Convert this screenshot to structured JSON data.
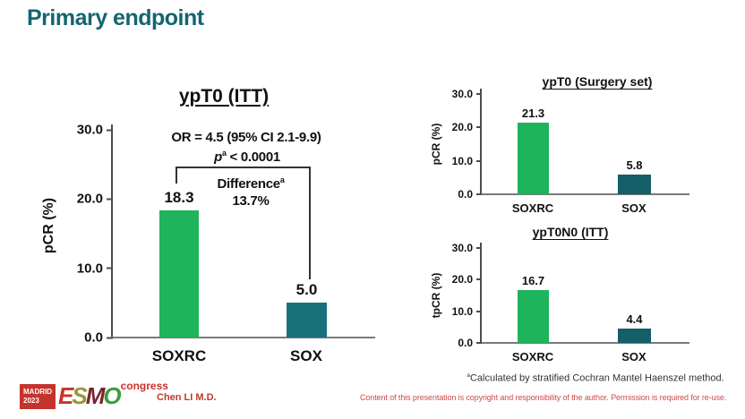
{
  "slide": {
    "title": "Primary endpoint",
    "author": "Chen LI M.D.",
    "copyright": "Content of this presentation is copyright and responsibility of the author. Permission is required for re-use.",
    "footnote": {
      "sup": "a",
      "text": "Calculated by stratified Cochran Mantel Haenszel method."
    }
  },
  "logo": {
    "city": "MADRID",
    "year": "2023",
    "letters": [
      "E",
      "S",
      "M",
      "O"
    ],
    "congress": "congress"
  },
  "colors": {
    "title_teal": "#156570",
    "bar_green": "#1db45c",
    "bar_teal": "#17717b",
    "bar_teal_dark": "#155f68",
    "axis_gray": "#4d4d4d",
    "red_text": "#c0392b",
    "copyright_red": "#cc4b4b",
    "esmo_red": "#c5342c",
    "esmo_olive": "#97963a",
    "esmo_maroon": "#7c2230",
    "esmo_green": "#3d9b3f"
  },
  "main_annotation": {
    "or_line": "OR = 4.5 (95% CI 2.1-9.9)",
    "p_italic": "p",
    "p_sup": "a",
    "p_rest": " < 0.0001",
    "difference_label": "Difference",
    "difference_sup": "a",
    "difference_value": "13.7%"
  },
  "chart_data": [
    {
      "type": "bar",
      "title": "ypT0 (ITT)",
      "ylabel": "pCR (%)",
      "categories": [
        "SOXRC",
        "SOX"
      ],
      "values": [
        18.3,
        5.0
      ],
      "value_labels": [
        "18.3",
        "5.0"
      ],
      "bar_colors": [
        "#1db45c",
        "#17717b"
      ],
      "ylim": [
        0,
        30
      ],
      "yticks": [
        "30.0",
        "20.0",
        "10.0",
        "0.0"
      ],
      "grid": false,
      "legend": "none",
      "annotation": "OR = 4.5 (95% CI 2.1-9.9); pa < 0.0001; Differencea 13.7%"
    },
    {
      "type": "bar",
      "title": "ypT0 (Surgery set)",
      "ylabel": "pCR (%)",
      "categories": [
        "SOXRC",
        "SOX"
      ],
      "values": [
        21.3,
        5.8
      ],
      "value_labels": [
        "21.3",
        "5.8"
      ],
      "bar_colors": [
        "#1db45c",
        "#155f68"
      ],
      "ylim": [
        0,
        30
      ],
      "yticks": [
        "30.0",
        "20.0",
        "10.0",
        "0.0"
      ],
      "grid": false,
      "legend": "none"
    },
    {
      "type": "bar",
      "title": "ypT0N0 (ITT)",
      "ylabel": "tpCR (%)",
      "categories": [
        "SOXRC",
        "SOX"
      ],
      "values": [
        16.7,
        4.4
      ],
      "value_labels": [
        "16.7",
        "4.4"
      ],
      "bar_colors": [
        "#1db45c",
        "#155f68"
      ],
      "ylim": [
        0,
        30
      ],
      "yticks": [
        "30.0",
        "20.0",
        "10.0",
        "0.0"
      ],
      "grid": false,
      "legend": "none"
    }
  ]
}
